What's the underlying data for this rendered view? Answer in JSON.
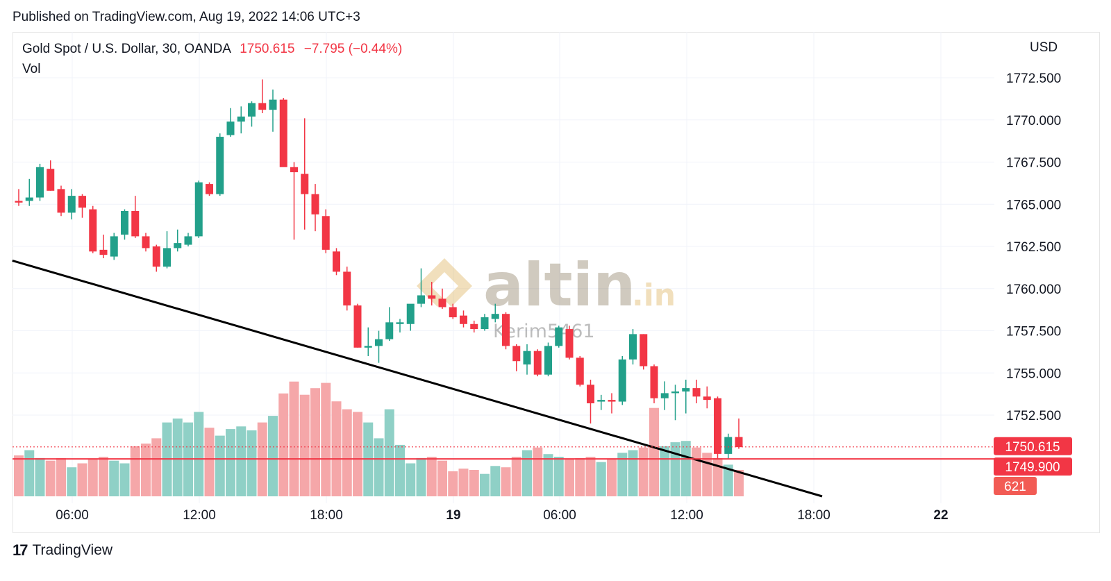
{
  "header": {
    "published": "Published on TradingView.com, Aug 19, 2022 14:06 UTC+3"
  },
  "legend": {
    "symbol": "Gold Spot / U.S. Dollar, 30, OANDA",
    "price": "1750.615",
    "change": "−7.795 (−0.44%)",
    "volume_label": "Vol"
  },
  "axis": {
    "currency": "USD",
    "price_ticks": [
      "1772.500",
      "1770.000",
      "1767.500",
      "1765.000",
      "1762.500",
      "1760.000",
      "1757.500",
      "1755.000",
      "1752.500"
    ],
    "time_ticks": [
      "06:00",
      "12:00",
      "18:00",
      "19",
      "06:00",
      "12:00",
      "18:00",
      "22"
    ]
  },
  "badges": {
    "last_price": "1750.615",
    "level": "1749.900",
    "volume": "621"
  },
  "watermark": {
    "brand": "altin",
    "brand_suffix": ".in",
    "author": "Kerim5461"
  },
  "footer": {
    "brand": "TradingView"
  },
  "colors": {
    "up": "#22a08a",
    "down": "#f23645",
    "up_vol": "#8fd0c6",
    "down_vol": "#f5a7a9",
    "trendline": "#000000",
    "level_line": "#f23645"
  },
  "chart_data": {
    "type": "candlestick",
    "interval": "30",
    "ylim": [
      1749.5,
      1773.5
    ],
    "candles": [
      {
        "o": 1765.2,
        "h": 1765.9,
        "l": 1764.9,
        "c": 1765.1
      },
      {
        "o": 1765.2,
        "h": 1766.5,
        "l": 1764.9,
        "c": 1765.4
      },
      {
        "o": 1765.4,
        "h": 1767.4,
        "l": 1765.2,
        "c": 1767.2
      },
      {
        "o": 1767.1,
        "h": 1767.6,
        "l": 1765.8,
        "c": 1765.8
      },
      {
        "o": 1765.9,
        "h": 1766.1,
        "l": 1764.3,
        "c": 1764.5
      },
      {
        "o": 1764.5,
        "h": 1765.9,
        "l": 1764.1,
        "c": 1765.5
      },
      {
        "o": 1765.5,
        "h": 1765.6,
        "l": 1764.2,
        "c": 1764.8
      },
      {
        "o": 1764.7,
        "h": 1764.9,
        "l": 1762.1,
        "c": 1762.2
      },
      {
        "o": 1762.3,
        "h": 1763.2,
        "l": 1761.8,
        "c": 1762.0
      },
      {
        "o": 1761.9,
        "h": 1763.3,
        "l": 1761.7,
        "c": 1763.1
      },
      {
        "o": 1763.2,
        "h": 1764.7,
        "l": 1762.9,
        "c": 1764.6
      },
      {
        "o": 1764.6,
        "h": 1765.5,
        "l": 1763.0,
        "c": 1763.1
      },
      {
        "o": 1763.1,
        "h": 1763.3,
        "l": 1762.2,
        "c": 1762.4
      },
      {
        "o": 1762.5,
        "h": 1762.6,
        "l": 1761.0,
        "c": 1761.3
      },
      {
        "o": 1761.3,
        "h": 1763.4,
        "l": 1761.2,
        "c": 1762.4
      },
      {
        "o": 1762.4,
        "h": 1763.5,
        "l": 1762.2,
        "c": 1762.7
      },
      {
        "o": 1762.6,
        "h": 1763.3,
        "l": 1762.5,
        "c": 1763.1
      },
      {
        "o": 1763.1,
        "h": 1766.4,
        "l": 1763.0,
        "c": 1766.3
      },
      {
        "o": 1766.2,
        "h": 1766.3,
        "l": 1765.5,
        "c": 1765.6
      },
      {
        "o": 1765.6,
        "h": 1769.2,
        "l": 1765.5,
        "c": 1769.0
      },
      {
        "o": 1769.1,
        "h": 1770.7,
        "l": 1769.0,
        "c": 1769.9
      },
      {
        "o": 1769.9,
        "h": 1770.8,
        "l": 1769.2,
        "c": 1770.2
      },
      {
        "o": 1770.2,
        "h": 1771.1,
        "l": 1769.6,
        "c": 1771.0
      },
      {
        "o": 1771.0,
        "h": 1772.4,
        "l": 1770.4,
        "c": 1770.6
      },
      {
        "o": 1770.6,
        "h": 1771.8,
        "l": 1769.3,
        "c": 1771.2
      },
      {
        "o": 1771.2,
        "h": 1771.3,
        "l": 1767.3,
        "c": 1767.2
      },
      {
        "o": 1767.2,
        "h": 1767.5,
        "l": 1762.9,
        "c": 1766.9
      },
      {
        "o": 1766.8,
        "h": 1770.1,
        "l": 1763.5,
        "c": 1765.6
      },
      {
        "o": 1765.6,
        "h": 1766.2,
        "l": 1763.4,
        "c": 1764.4
      },
      {
        "o": 1764.3,
        "h": 1764.7,
        "l": 1762.1,
        "c": 1762.3
      },
      {
        "o": 1762.2,
        "h": 1762.4,
        "l": 1760.8,
        "c": 1761.0
      },
      {
        "o": 1761.0,
        "h": 1761.3,
        "l": 1758.7,
        "c": 1759.0
      },
      {
        "o": 1759.0,
        "h": 1759.1,
        "l": 1756.5,
        "c": 1756.5
      },
      {
        "o": 1756.5,
        "h": 1757.7,
        "l": 1756.0,
        "c": 1756.6
      },
      {
        "o": 1756.6,
        "h": 1757.5,
        "l": 1755.6,
        "c": 1757.0
      },
      {
        "o": 1757.0,
        "h": 1758.9,
        "l": 1756.9,
        "c": 1758.0
      },
      {
        "o": 1757.9,
        "h": 1758.2,
        "l": 1757.4,
        "c": 1758.0
      },
      {
        "o": 1757.9,
        "h": 1759.0,
        "l": 1757.5,
        "c": 1759.1
      },
      {
        "o": 1759.1,
        "h": 1761.2,
        "l": 1758.9,
        "c": 1759.6
      },
      {
        "o": 1759.6,
        "h": 1760.4,
        "l": 1759.0,
        "c": 1759.4
      },
      {
        "o": 1759.4,
        "h": 1760.0,
        "l": 1758.8,
        "c": 1758.9
      },
      {
        "o": 1758.9,
        "h": 1759.1,
        "l": 1758.2,
        "c": 1758.3
      },
      {
        "o": 1758.4,
        "h": 1758.7,
        "l": 1757.7,
        "c": 1757.9
      },
      {
        "o": 1757.9,
        "h": 1758.1,
        "l": 1757.4,
        "c": 1757.6
      },
      {
        "o": 1757.6,
        "h": 1758.5,
        "l": 1757.5,
        "c": 1758.3
      },
      {
        "o": 1758.2,
        "h": 1759.1,
        "l": 1758.0,
        "c": 1758.5
      },
      {
        "o": 1758.5,
        "h": 1758.6,
        "l": 1756.4,
        "c": 1756.6
      },
      {
        "o": 1756.6,
        "h": 1756.7,
        "l": 1755.1,
        "c": 1755.7
      },
      {
        "o": 1755.5,
        "h": 1756.7,
        "l": 1754.9,
        "c": 1756.3
      },
      {
        "o": 1756.3,
        "h": 1756.4,
        "l": 1754.8,
        "c": 1754.9
      },
      {
        "o": 1754.9,
        "h": 1756.8,
        "l": 1754.8,
        "c": 1756.6
      },
      {
        "o": 1756.6,
        "h": 1757.8,
        "l": 1756.5,
        "c": 1757.7
      },
      {
        "o": 1757.6,
        "h": 1757.8,
        "l": 1755.8,
        "c": 1755.9
      },
      {
        "o": 1755.9,
        "h": 1756.0,
        "l": 1754.2,
        "c": 1754.3
      },
      {
        "o": 1754.3,
        "h": 1754.6,
        "l": 1752.0,
        "c": 1753.2
      },
      {
        "o": 1753.3,
        "h": 1753.7,
        "l": 1752.8,
        "c": 1753.4
      },
      {
        "o": 1753.4,
        "h": 1753.8,
        "l": 1752.6,
        "c": 1753.3
      },
      {
        "o": 1753.3,
        "h": 1756.0,
        "l": 1753.1,
        "c": 1755.8
      },
      {
        "o": 1755.8,
        "h": 1757.6,
        "l": 1755.5,
        "c": 1757.3
      },
      {
        "o": 1757.3,
        "h": 1757.3,
        "l": 1755.2,
        "c": 1755.4
      },
      {
        "o": 1755.4,
        "h": 1755.5,
        "l": 1753.2,
        "c": 1753.5
      },
      {
        "o": 1753.5,
        "h": 1754.5,
        "l": 1752.8,
        "c": 1753.8
      },
      {
        "o": 1753.8,
        "h": 1754.3,
        "l": 1752.2,
        "c": 1753.9
      },
      {
        "o": 1753.9,
        "h": 1754.6,
        "l": 1752.6,
        "c": 1754.1
      },
      {
        "o": 1754.1,
        "h": 1754.6,
        "l": 1753.2,
        "c": 1753.6
      },
      {
        "o": 1753.6,
        "h": 1754.2,
        "l": 1752.9,
        "c": 1753.4
      },
      {
        "o": 1753.5,
        "h": 1753.6,
        "l": 1749.9,
        "c": 1750.2
      },
      {
        "o": 1750.2,
        "h": 1751.4,
        "l": 1749.9,
        "c": 1751.2
      },
      {
        "o": 1751.2,
        "h": 1752.3,
        "l": 1750.5,
        "c": 1750.6
      }
    ],
    "volumes": [
      310,
      350,
      290,
      270,
      290,
      220,
      250,
      280,
      300,
      270,
      250,
      380,
      400,
      440,
      560,
      590,
      560,
      640,
      520,
      460,
      510,
      530,
      500,
      560,
      610,
      780,
      870,
      770,
      820,
      860,
      720,
      660,
      640,
      560,
      440,
      660,
      390,
      250,
      290,
      300,
      270,
      190,
      210,
      200,
      170,
      230,
      220,
      300,
      350,
      370,
      320,
      300,
      280,
      290,
      300,
      260,
      280,
      330,
      350,
      370,
      670,
      380,
      410,
      420,
      370,
      330,
      290,
      240,
      200
    ],
    "levels": {
      "last_price": 1750.615,
      "horizontal": 1749.9
    },
    "trendline": {
      "from": {
        "bar": -1,
        "price": 1761.7
      },
      "to": {
        "bar": 76,
        "price": 1749.5
      }
    }
  }
}
